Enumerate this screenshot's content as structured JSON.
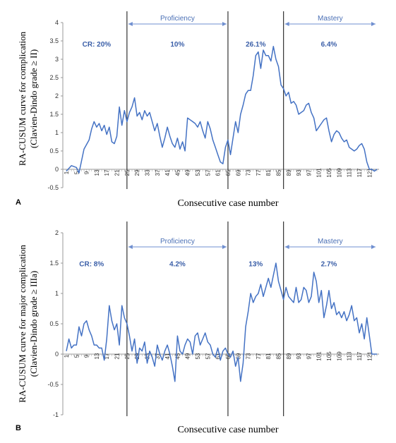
{
  "colors": {
    "line": "#4472c4",
    "arrow": "#6f8fd0",
    "phase_text": "#4a6fb5",
    "cr_text": "#3b5fa8"
  },
  "chart_data": [
    {
      "type": "line",
      "panel": "A",
      "ylabel_line1": "RA-CUSUM  curve for complication",
      "ylabel_line2": "(Clavien-Dindo  grade ≥ II)",
      "xlabel": "Consecutive case number",
      "ylim": [
        -0.5,
        4
      ],
      "yticks": [
        "-0.5",
        "0",
        "0.5",
        "1",
        "1.5",
        "2",
        "2.5",
        "3",
        "3.5",
        "4"
      ],
      "xticks": [
        "1",
        "5",
        "9",
        "13",
        "17",
        "21",
        "25",
        "29",
        "33",
        "37",
        "41",
        "45",
        "49",
        "53",
        "57",
        "61",
        "65",
        "69",
        "73",
        "77",
        "81",
        "85",
        "89",
        "93",
        "97",
        "101",
        "105",
        "109",
        "113",
        "117",
        "121"
      ],
      "xlim": [
        1,
        124
      ],
      "phase_lines": [
        25,
        65,
        87
      ],
      "phase_labels": [
        {
          "text": "Proficiency",
          "from": 25,
          "to": 65
        },
        {
          "text": "Mastery",
          "from": 87,
          "to": 124
        }
      ],
      "cr_labels": [
        {
          "text": "CR: 20%",
          "x": 13,
          "y": 3.35
        },
        {
          "text": "10%",
          "x": 45,
          "y": 3.35
        },
        {
          "text": "26.1%",
          "x": 76,
          "y": 3.35
        },
        {
          "text": "6.4%",
          "x": 105,
          "y": 3.35
        }
      ],
      "series": [
        {
          "x": [
            1,
            3,
            5,
            6,
            8,
            10,
            11,
            12,
            13,
            14,
            15,
            16,
            17,
            18,
            19,
            20,
            21,
            22,
            23,
            24,
            25,
            26,
            27,
            28,
            29,
            30,
            31,
            32,
            33,
            34,
            35,
            36,
            37,
            38,
            39,
            40,
            41,
            42,
            43,
            44,
            45,
            46,
            47,
            48,
            49,
            50,
            51,
            52,
            53,
            54,
            55,
            56,
            57,
            58,
            59,
            60,
            61,
            62,
            63,
            64,
            65,
            66,
            67,
            68,
            69,
            70,
            71,
            72,
            73,
            74,
            75,
            76,
            77,
            78,
            79,
            80,
            81,
            82,
            83,
            84,
            85,
            86,
            87,
            88,
            89,
            90,
            91,
            92,
            93,
            94,
            95,
            96,
            97,
            98,
            99,
            100,
            101,
            102,
            103,
            104,
            105,
            106,
            107,
            108,
            109,
            110,
            111,
            112,
            113,
            114,
            115,
            116,
            117,
            118,
            119,
            120,
            121,
            122,
            123,
            124
          ],
          "y": [
            -0.05,
            0.1,
            0.05,
            -0.1,
            0.55,
            0.8,
            1.1,
            1.3,
            1.15,
            1.25,
            1.05,
            1.2,
            0.95,
            1.15,
            0.75,
            0.7,
            0.9,
            1.7,
            1.2,
            1.6,
            1.3,
            1.55,
            1.7,
            1.95,
            1.45,
            1.55,
            1.35,
            1.6,
            1.45,
            1.55,
            1.3,
            1.05,
            1.25,
            0.9,
            0.6,
            0.85,
            1.15,
            0.9,
            0.7,
            0.6,
            0.85,
            0.55,
            0.75,
            0.5,
            1.4,
            1.35,
            1.3,
            1.25,
            1.15,
            1.3,
            1.05,
            0.85,
            1.3,
            1.1,
            0.8,
            0.6,
            0.4,
            0.2,
            0.15,
            0.6,
            0.8,
            0.4,
            0.85,
            1.3,
            1.0,
            1.5,
            1.75,
            2.05,
            2.15,
            2.15,
            2.55,
            3.1,
            3.2,
            2.75,
            3.25,
            3.1,
            3.1,
            2.95,
            3.35,
            3.0,
            2.8,
            2.3,
            2.2,
            2.0,
            2.1,
            1.8,
            1.85,
            1.75,
            1.5,
            1.55,
            1.6,
            1.75,
            1.8,
            1.55,
            1.4,
            1.05,
            1.15,
            1.25,
            1.35,
            1.4,
            1.05,
            0.75,
            0.95,
            1.05,
            1.0,
            0.85,
            0.75,
            0.8,
            0.6,
            0.55,
            0.5,
            0.55,
            0.65,
            0.7,
            0.55,
            0.2,
            0.0,
            0.0,
            -0.05,
            0.0
          ]
        }
      ]
    },
    {
      "type": "line",
      "panel": "B",
      "ylabel_line1": "RA-CUSUM  curve for major complication",
      "ylabel_line2": "(Clavien-Dindo  grade ≥ IIIa)",
      "xlabel": "Consecutive case number",
      "ylim": [
        -1,
        2
      ],
      "yticks": [
        "-1",
        "-0.5",
        "0",
        "0.5",
        "1",
        "1.5",
        "2"
      ],
      "xticks": [
        "1",
        "5",
        "9",
        "13",
        "17",
        "21",
        "25",
        "29",
        "33",
        "37",
        "41",
        "45",
        "49",
        "53",
        "57",
        "61",
        "65",
        "69",
        "73",
        "77",
        "81",
        "85",
        "89",
        "93",
        "97",
        "101",
        "105",
        "109",
        "113",
        "117",
        "121"
      ],
      "xlim": [
        1,
        124
      ],
      "phase_lines": [
        25,
        65,
        87
      ],
      "phase_labels": [
        {
          "text": "Proficiency",
          "from": 25,
          "to": 65
        },
        {
          "text": "Mastery",
          "from": 87,
          "to": 124
        }
      ],
      "cr_labels": [
        {
          "text": "CR:  8%",
          "x": 11,
          "y": 1.45
        },
        {
          "text": "4.2%",
          "x": 45,
          "y": 1.45
        },
        {
          "text": "13%",
          "x": 76,
          "y": 1.45
        },
        {
          "text": "2.7%",
          "x": 105,
          "y": 1.45
        }
      ],
      "series": [
        {
          "x": [
            1,
            2,
            3,
            4,
            5,
            6,
            7,
            8,
            9,
            10,
            11,
            12,
            13,
            14,
            15,
            16,
            17,
            18,
            19,
            20,
            21,
            22,
            23,
            24,
            25,
            26,
            27,
            28,
            29,
            30,
            31,
            32,
            33,
            34,
            35,
            36,
            37,
            38,
            39,
            40,
            41,
            42,
            43,
            44,
            45,
            46,
            47,
            48,
            49,
            50,
            51,
            52,
            53,
            54,
            55,
            56,
            57,
            58,
            59,
            60,
            61,
            62,
            63,
            64,
            65,
            66,
            67,
            68,
            69,
            70,
            71,
            72,
            73,
            74,
            75,
            76,
            77,
            78,
            79,
            80,
            81,
            82,
            83,
            84,
            85,
            86,
            87,
            88,
            89,
            90,
            91,
            92,
            93,
            94,
            95,
            96,
            97,
            98,
            99,
            100,
            101,
            102,
            103,
            104,
            105,
            106,
            107,
            108,
            109,
            110,
            111,
            112,
            113,
            114,
            115,
            116,
            117,
            118,
            119,
            120,
            121,
            122,
            123,
            124
          ],
          "y": [
            0.05,
            0.25,
            0.1,
            0.15,
            0.15,
            0.45,
            0.3,
            0.5,
            0.55,
            0.4,
            0.3,
            0.15,
            0.15,
            0.1,
            0.1,
            -0.1,
            0.25,
            0.8,
            0.55,
            0.4,
            0.5,
            0.15,
            0.8,
            0.6,
            0.5,
            0.3,
            0.05,
            0.25,
            -0.15,
            0.1,
            0.05,
            0.2,
            -0.15,
            0.05,
            -0.05,
            -0.2,
            0.15,
            0.0,
            -0.1,
            0.05,
            0.15,
            0.0,
            -0.2,
            -0.45,
            0.3,
            0.05,
            0.0,
            0.15,
            0.25,
            0.2,
            0.0,
            0.3,
            0.35,
            0.15,
            0.25,
            0.35,
            0.2,
            0.15,
            0.0,
            -0.05,
            0.1,
            -0.1,
            0.05,
            0.1,
            0.0,
            -0.05,
            0.05,
            -0.2,
            -0.05,
            -0.45,
            -0.15,
            0.45,
            0.7,
            1.0,
            0.85,
            0.95,
            1.0,
            1.15,
            0.95,
            1.1,
            1.25,
            1.1,
            1.3,
            1.5,
            1.2,
            1.05,
            0.9,
            1.1,
            0.95,
            0.9,
            0.85,
            1.1,
            0.85,
            0.9,
            1.1,
            1.05,
            0.85,
            0.95,
            1.35,
            1.2,
            0.85,
            1.05,
            0.6,
            0.8,
            1.05,
            0.75,
            0.85,
            0.65,
            0.7,
            0.6,
            0.7,
            0.55,
            0.65,
            0.8,
            0.55,
            0.6,
            0.35,
            0.5,
            0.25,
            0.6,
            0.3,
            0.0,
            0.0,
            0.0
          ]
        }
      ]
    }
  ]
}
